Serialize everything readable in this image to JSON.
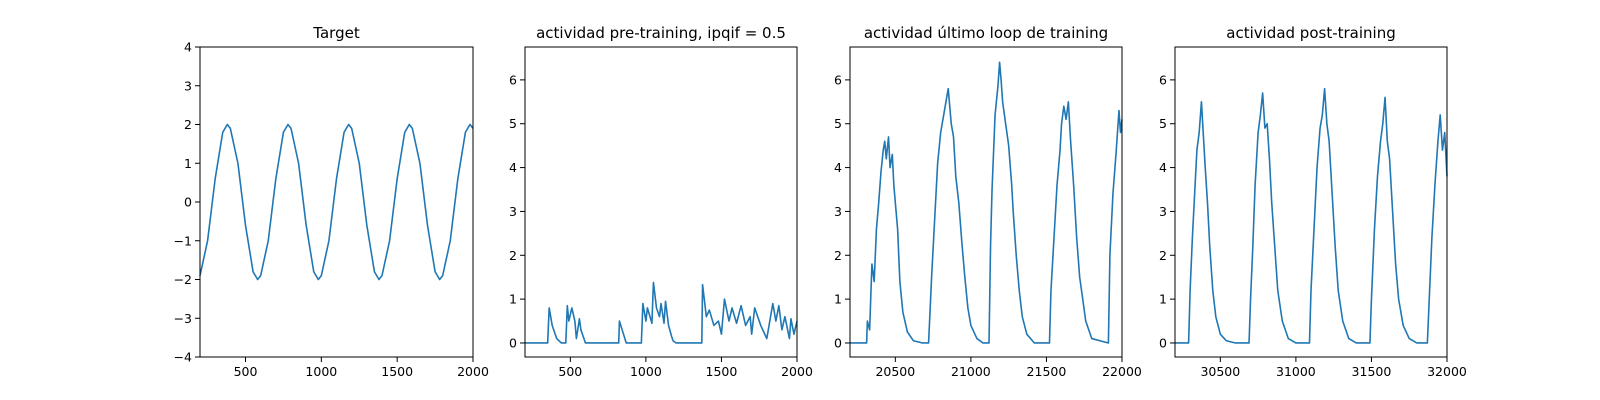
{
  "colors": {
    "series": "#1f77b4"
  },
  "chart_data": [
    {
      "type": "line",
      "title": "Target",
      "xlabel": "",
      "ylabel": "",
      "xlim": [
        200,
        2000
      ],
      "ylim": [
        -4,
        4
      ],
      "xticks": [
        500,
        1000,
        1500,
        2000
      ],
      "yticks": [
        -4,
        -3,
        -2,
        -1,
        0,
        1,
        2,
        3,
        4
      ],
      "grid": false,
      "series": [
        {
          "x": [
            200,
            250,
            300,
            350,
            380,
            400,
            450,
            500,
            550,
            580,
            600,
            650,
            700,
            750,
            780,
            800,
            850,
            900,
            950,
            980,
            1000,
            1050,
            1100,
            1150,
            1180,
            1200,
            1250,
            1300,
            1350,
            1380,
            1400,
            1450,
            1500,
            1550,
            1580,
            1600,
            1650,
            1700,
            1750,
            1780,
            1800,
            1850,
            1900,
            1950,
            1980,
            2000
          ],
          "y": [
            -1.9,
            -1.0,
            0.6,
            1.8,
            2.0,
            1.9,
            1.0,
            -0.6,
            -1.8,
            -2.0,
            -1.9,
            -1.0,
            0.6,
            1.8,
            2.0,
            1.9,
            1.0,
            -0.6,
            -1.8,
            -2.0,
            -1.9,
            -1.0,
            0.6,
            1.8,
            2.0,
            1.9,
            1.0,
            -0.6,
            -1.8,
            -2.0,
            -1.9,
            -1.0,
            0.6,
            1.8,
            2.0,
            1.9,
            1.0,
            -0.6,
            -1.8,
            -2.0,
            -1.9,
            -1.0,
            0.6,
            1.8,
            2.0,
            1.9
          ]
        }
      ]
    },
    {
      "type": "line",
      "title": "actividad pre-training, ipqif = 0.5",
      "xlabel": "",
      "ylabel": "",
      "xlim": [
        200,
        2000
      ],
      "ylim": [
        -0.32,
        6.75
      ],
      "xticks": [
        500,
        1000,
        1500,
        2000
      ],
      "yticks": [
        0,
        1,
        2,
        3,
        4,
        5,
        6
      ],
      "grid": false,
      "series": [
        {
          "x": [
            200,
            350,
            360,
            380,
            410,
            440,
            470,
            480,
            490,
            510,
            530,
            540,
            560,
            570,
            600,
            640,
            820,
            825,
            870,
            970,
            980,
            1000,
            1010,
            1040,
            1050,
            1070,
            1090,
            1100,
            1120,
            1130,
            1150,
            1170,
            1180,
            1200,
            1260,
            1370,
            1375,
            1400,
            1420,
            1450,
            1480,
            1500,
            1520,
            1550,
            1570,
            1600,
            1630,
            1660,
            1690,
            1700,
            1720,
            1760,
            1800,
            1840,
            1860,
            1880,
            1900,
            1920,
            1950,
            1960,
            1980,
            2000
          ],
          "y": [
            0,
            0,
            0.8,
            0.4,
            0.1,
            0,
            0,
            0.85,
            0.5,
            0.8,
            0.5,
            0.1,
            0.55,
            0.3,
            0,
            0,
            0,
            0.5,
            0,
            0,
            0.9,
            0.5,
            0.8,
            0.45,
            1.38,
            0.8,
            0.6,
            0.9,
            0.45,
            0.95,
            0.4,
            0.15,
            0.05,
            0,
            0,
            0,
            1.33,
            0.6,
            0.75,
            0.4,
            0.5,
            0.2,
            1.0,
            0.5,
            0.8,
            0.45,
            0.85,
            0.4,
            0.6,
            0.2,
            0.8,
            0.4,
            0.1,
            0.9,
            0.5,
            0.85,
            0.3,
            0.6,
            0.1,
            0.55,
            0.2,
            0.5
          ]
        }
      ]
    },
    {
      "type": "line",
      "title": "actividad último loop de training",
      "xlabel": "",
      "ylabel": "",
      "xlim": [
        20200,
        22000
      ],
      "ylim": [
        -0.32,
        6.75
      ],
      "xticks": [
        20500,
        21000,
        21500,
        22000
      ],
      "yticks": [
        0,
        1,
        2,
        3,
        4,
        5,
        6
      ],
      "grid": false,
      "series": [
        {
          "x": [
            20200,
            20310,
            20315,
            20330,
            20345,
            20360,
            20375,
            20390,
            20405,
            20420,
            20430,
            20440,
            20455,
            20465,
            20480,
            20490,
            20500,
            20515,
            20530,
            20550,
            20580,
            20620,
            20680,
            20720,
            20740,
            20760,
            20780,
            20800,
            20820,
            20835,
            20850,
            20870,
            20885,
            20900,
            20920,
            20940,
            20960,
            20980,
            21000,
            21040,
            21080,
            21120,
            21130,
            21140,
            21160,
            21180,
            21190,
            21200,
            21210,
            21230,
            21250,
            21270,
            21280,
            21300,
            21320,
            21340,
            21370,
            21420,
            21520,
            21530,
            21550,
            21570,
            21590,
            21600,
            21615,
            21630,
            21645,
            21660,
            21680,
            21700,
            21720,
            21760,
            21800,
            21910,
            21920,
            21940,
            21960,
            21980,
            21990,
            22000
          ],
          "y": [
            0,
            0,
            0.5,
            0.3,
            1.8,
            1.4,
            2.6,
            3.2,
            3.9,
            4.4,
            4.6,
            4.2,
            4.7,
            4.0,
            4.3,
            3.6,
            3.2,
            2.6,
            1.4,
            0.7,
            0.25,
            0.05,
            0,
            0,
            1.5,
            2.8,
            4.1,
            4.8,
            5.2,
            5.5,
            5.8,
            5.0,
            4.7,
            3.8,
            3.2,
            2.3,
            1.5,
            0.8,
            0.4,
            0.1,
            0,
            0,
            2.2,
            3.5,
            5.2,
            5.9,
            6.4,
            6.0,
            5.5,
            5.0,
            4.5,
            3.6,
            3.0,
            2.0,
            1.2,
            0.6,
            0.2,
            0,
            0,
            1.2,
            2.4,
            3.6,
            4.4,
            5.0,
            5.4,
            5.1,
            5.5,
            4.6,
            3.6,
            2.4,
            1.5,
            0.5,
            0.1,
            0,
            2.0,
            3.4,
            4.3,
            5.3,
            4.8,
            5.1
          ]
        }
      ]
    },
    {
      "type": "line",
      "title": "actividad post-training",
      "xlabel": "",
      "ylabel": "",
      "xlim": [
        30200,
        32000
      ],
      "ylim": [
        -0.32,
        6.75
      ],
      "xticks": [
        30500,
        31000,
        31500,
        32000
      ],
      "yticks": [
        0,
        1,
        2,
        3,
        4,
        5,
        6
      ],
      "grid": false,
      "series": [
        {
          "x": [
            30200,
            30290,
            30300,
            30315,
            30330,
            30345,
            30360,
            30375,
            30390,
            30400,
            30415,
            30430,
            30450,
            30470,
            30500,
            30540,
            30600,
            30690,
            30700,
            30715,
            30730,
            30750,
            30765,
            30780,
            30795,
            30810,
            30825,
            30840,
            30860,
            30880,
            30910,
            30950,
            31000,
            31090,
            31100,
            31120,
            31140,
            31160,
            31175,
            31190,
            31205,
            31220,
            31240,
            31260,
            31280,
            31310,
            31350,
            31400,
            31490,
            31500,
            31520,
            31540,
            31560,
            31575,
            31590,
            31605,
            31620,
            31640,
            31660,
            31680,
            31710,
            31750,
            31800,
            31870,
            31880,
            31900,
            31920,
            31940,
            31955,
            31970,
            31985,
            32000
          ],
          "y": [
            0,
            0,
            1.2,
            2.4,
            3.4,
            4.4,
            4.8,
            5.5,
            4.6,
            4.0,
            3.2,
            2.2,
            1.2,
            0.6,
            0.2,
            0.05,
            0,
            0,
            1.0,
            2.2,
            3.6,
            4.8,
            5.2,
            5.7,
            4.9,
            5.0,
            4.2,
            3.2,
            2.2,
            1.2,
            0.5,
            0.1,
            0,
            0,
            1.2,
            2.6,
            4.0,
            4.9,
            5.2,
            5.8,
            5.0,
            4.6,
            3.4,
            2.2,
            1.2,
            0.5,
            0.1,
            0,
            0,
            1.0,
            2.6,
            3.8,
            4.6,
            5.0,
            5.6,
            4.6,
            4.2,
            3.0,
            1.8,
            1.0,
            0.4,
            0.1,
            0,
            0,
            0.8,
            2.4,
            3.6,
            4.6,
            5.2,
            4.4,
            4.8,
            3.8
          ]
        }
      ]
    }
  ]
}
